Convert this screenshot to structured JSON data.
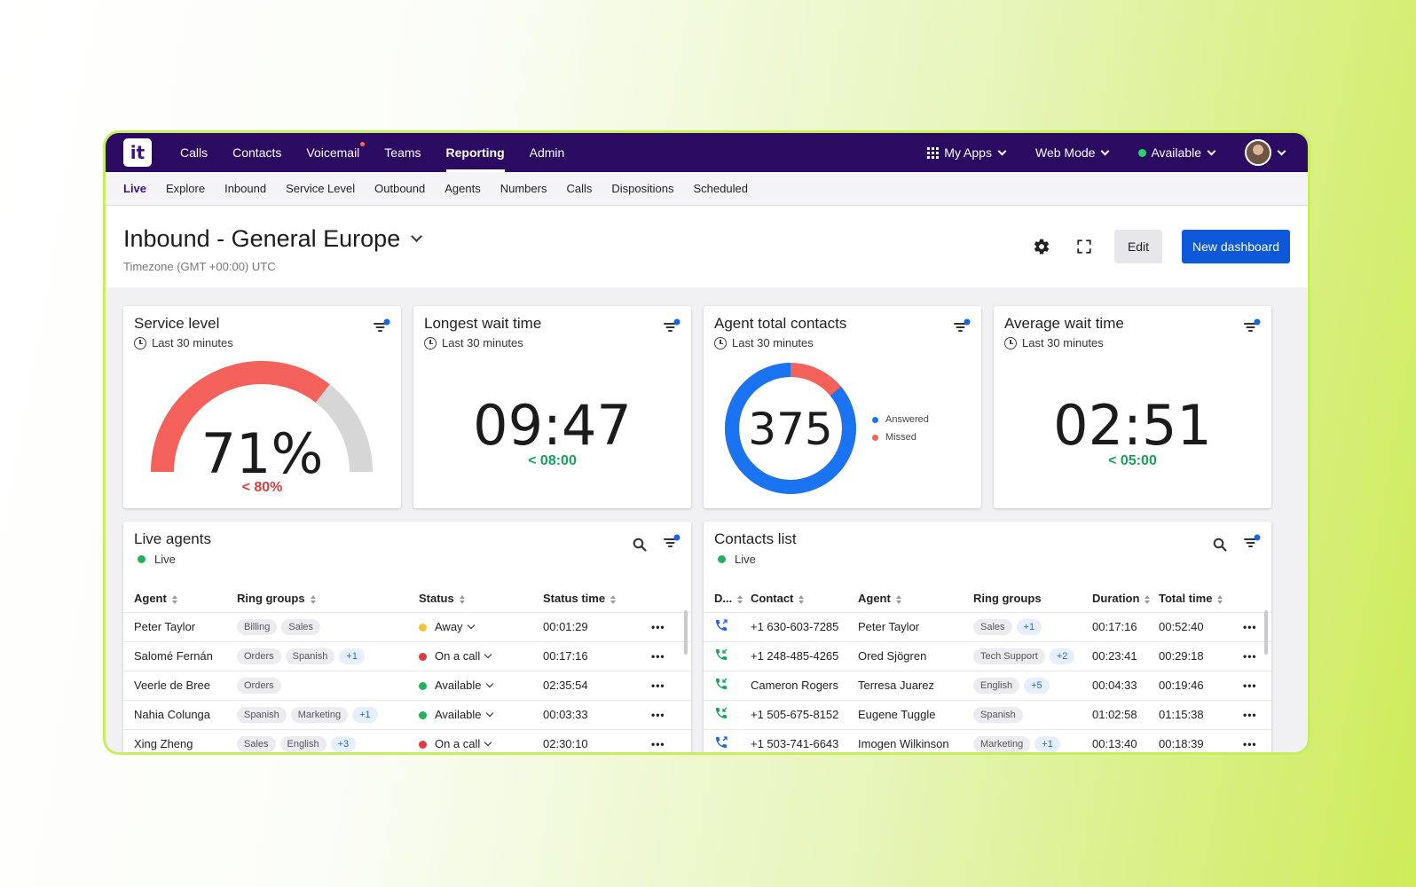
{
  "app": {
    "logo_text": "it"
  },
  "topnav": {
    "items": [
      "Calls",
      "Contacts",
      "Voicemail",
      "Teams",
      "Reporting",
      "Admin"
    ],
    "active": "Reporting",
    "my_apps": "My Apps",
    "mode": "Web Mode",
    "status": "Available"
  },
  "subnav": {
    "items": [
      "Live",
      "Explore",
      "Inbound",
      "Service Level",
      "Outbound",
      "Agents",
      "Numbers",
      "Calls",
      "Dispositions",
      "Scheduled"
    ],
    "active": "Live"
  },
  "header": {
    "title": "Inbound - General Europe",
    "timezone": "Timezone (GMT +00:00) UTC",
    "edit_label": "Edit",
    "new_dashboard_label": "New dashboard"
  },
  "widgets": {
    "service_level": {
      "title": "Service level",
      "period": "Last 30 minutes",
      "value": "71%",
      "value_fraction": 0.71,
      "target": "< 80%",
      "color": "#f4605a",
      "track_color": "#d6d6d6"
    },
    "longest_wait": {
      "title": "Longest wait time",
      "period": "Last 30 minutes",
      "value": "09:47",
      "target": "< 08:00"
    },
    "agent_contacts": {
      "title": "Agent total contacts",
      "period": "Last 30 minutes",
      "value": "375",
      "answered_label": "Answered",
      "missed_label": "Missed",
      "answered_fraction": 0.86,
      "answered_color": "#1a73f0",
      "missed_color": "#f4605a"
    },
    "average_wait": {
      "title": "Average wait time",
      "period": "Last 30 minutes",
      "value": "02:51",
      "target": "< 05:00"
    }
  },
  "live_agents": {
    "title": "Live agents",
    "status": "Live",
    "columns": [
      "Agent",
      "Ring groups",
      "Status",
      "Status time"
    ],
    "rows": [
      {
        "agent": "Peter Taylor",
        "groups": [
          "Billing",
          "Sales"
        ],
        "extra": "",
        "status": "Away",
        "status_color": "#f2c335",
        "time": "00:01:29"
      },
      {
        "agent": "Salomé Fernán",
        "groups": [
          "Orders",
          "Spanish"
        ],
        "extra": "+1",
        "status": "On a call",
        "status_color": "#e03b3b",
        "time": "00:17:16"
      },
      {
        "agent": "Veerle de Bree",
        "groups": [
          "Orders"
        ],
        "extra": "",
        "status": "Available",
        "status_color": "#1fb25a",
        "time": "02:35:54"
      },
      {
        "agent": "Nahia Colunga",
        "groups": [
          "Spanish",
          "Marketing"
        ],
        "extra": "+1",
        "status": "Available",
        "status_color": "#1fb25a",
        "time": "00:03:33"
      },
      {
        "agent": "Xing Zheng",
        "groups": [
          "Sales",
          "English"
        ],
        "extra": "+3",
        "status": "On a call",
        "status_color": "#e03b3b",
        "time": "02:30:10"
      }
    ]
  },
  "contacts_list": {
    "title": "Contacts list",
    "status": "Live",
    "columns": [
      "D...",
      "Contact",
      "Agent",
      "Ring groups",
      "Duration",
      "Total time"
    ],
    "rows": [
      {
        "dir": "outbound",
        "contact": "+1 630-603-7285",
        "agent": "Peter Taylor",
        "groups": [
          "Sales"
        ],
        "extra": "+1",
        "duration": "00:17:16",
        "total": "00:52:40"
      },
      {
        "dir": "inbound",
        "contact": "+1 248-485-4265",
        "agent": "Ored Sjögren",
        "groups": [
          "Tech Support"
        ],
        "extra": "+2",
        "duration": "00:23:41",
        "total": "00:29:18"
      },
      {
        "dir": "inbound",
        "contact": "Cameron Rogers",
        "agent": "Terresa Juarez",
        "groups": [
          "English"
        ],
        "extra": "+5",
        "duration": "00:04:33",
        "total": "00:19:46"
      },
      {
        "dir": "inbound",
        "contact": "+1 505-675-8152",
        "agent": "Eugene Tuggle",
        "groups": [
          "Spanish"
        ],
        "extra": "",
        "duration": "01:02:58",
        "total": "01:15:38"
      },
      {
        "dir": "outbound",
        "contact": "+1 503-741-6643",
        "agent": "Imogen Wilkinson",
        "groups": [
          "Marketing"
        ],
        "extra": "+1",
        "duration": "00:13:40",
        "total": "00:18:39"
      }
    ]
  }
}
